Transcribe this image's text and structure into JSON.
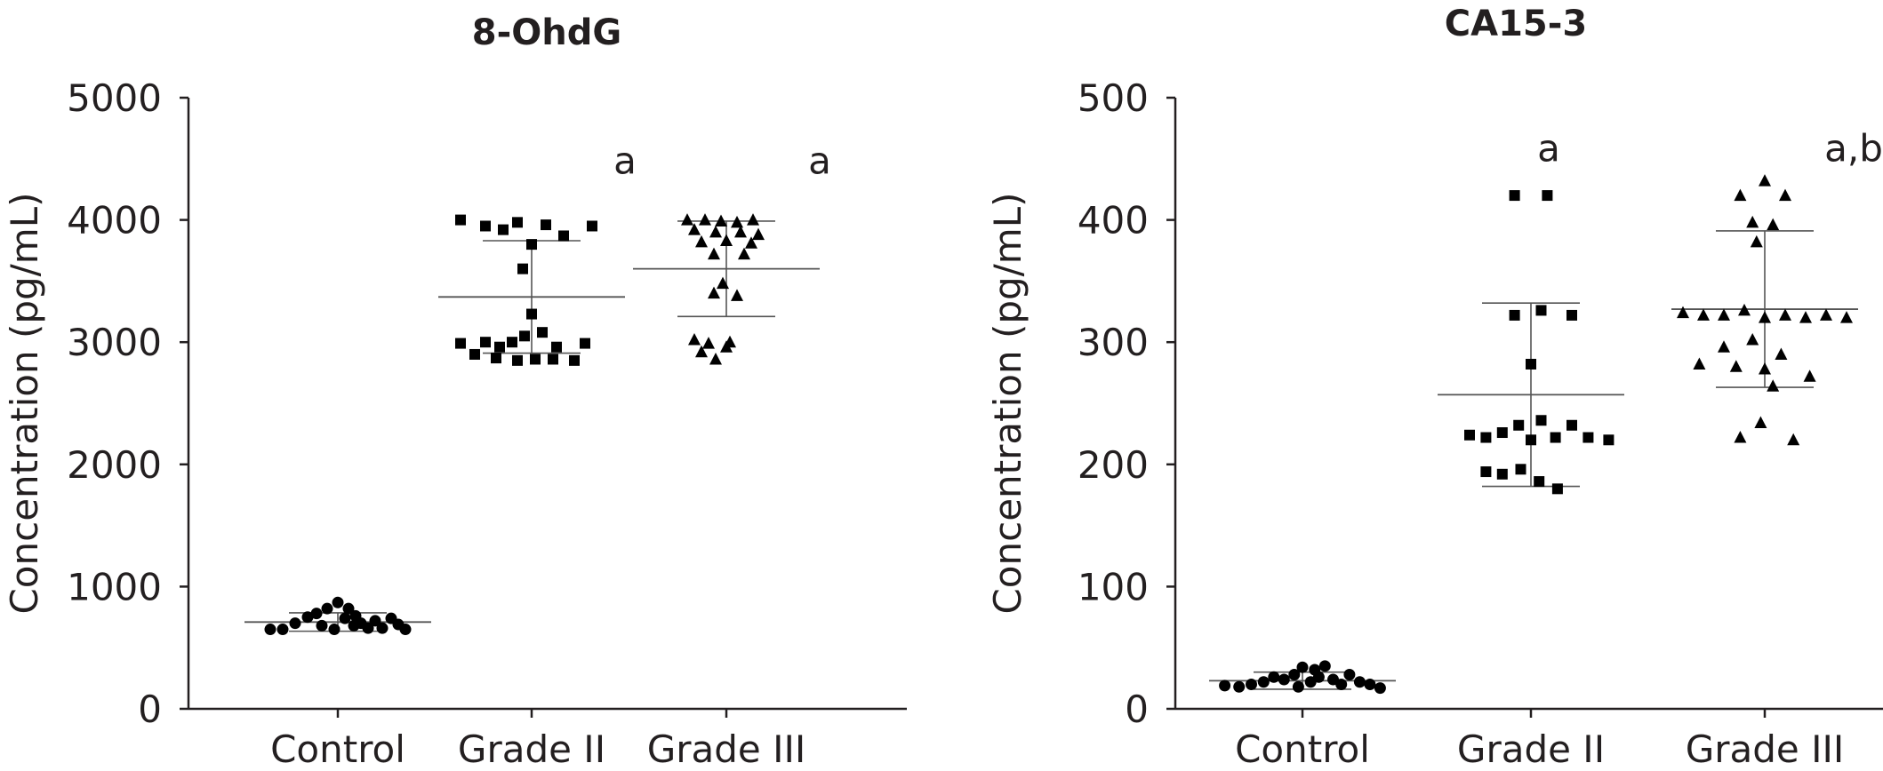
{
  "chart_data": [
    {
      "type": "scatter",
      "title": "8-OhdG",
      "xlabel": "",
      "ylabel": "Concentration (pg/mL)",
      "ylim": [
        0,
        5000
      ],
      "yticks": [
        0,
        1000,
        2000,
        3000,
        4000,
        5000
      ],
      "categories": [
        "Control",
        "Grade II",
        "Grade III"
      ],
      "markers": [
        "circle",
        "square",
        "triangle"
      ],
      "series": [
        {
          "category": "Control",
          "mean": 710,
          "sd": 75,
          "points": [
            {
              "offset": -0.38,
              "value": 650
            },
            {
              "offset": -0.31,
              "value": 650
            },
            {
              "offset": -0.24,
              "value": 700
            },
            {
              "offset": -0.17,
              "value": 750
            },
            {
              "offset": -0.12,
              "value": 780
            },
            {
              "offset": -0.06,
              "value": 820
            },
            {
              "offset": 0.0,
              "value": 870
            },
            {
              "offset": 0.04,
              "value": 740
            },
            {
              "offset": 0.06,
              "value": 820
            },
            {
              "offset": 0.1,
              "value": 760
            },
            {
              "offset": 0.13,
              "value": 700
            },
            {
              "offset": 0.17,
              "value": 660
            },
            {
              "offset": 0.21,
              "value": 720
            },
            {
              "offset": 0.25,
              "value": 660
            },
            {
              "offset": 0.3,
              "value": 740
            },
            {
              "offset": 0.34,
              "value": 690
            },
            {
              "offset": 0.38,
              "value": 650
            },
            {
              "offset": -0.09,
              "value": 680
            },
            {
              "offset": -0.02,
              "value": 650
            },
            {
              "offset": 0.09,
              "value": 680
            }
          ]
        },
        {
          "category": "Grade II",
          "mean": 3370,
          "sd": 460,
          "points": [
            {
              "offset": -0.4,
              "value": 4000
            },
            {
              "offset": -0.26,
              "value": 3950
            },
            {
              "offset": -0.16,
              "value": 3920
            },
            {
              "offset": -0.08,
              "value": 3980
            },
            {
              "offset": 0.08,
              "value": 3960
            },
            {
              "offset": 0.18,
              "value": 3870
            },
            {
              "offset": 0.34,
              "value": 3950
            },
            {
              "offset": 0.0,
              "value": 3800
            },
            {
              "offset": -0.05,
              "value": 3600
            },
            {
              "offset": 0.0,
              "value": 3230
            },
            {
              "offset": -0.11,
              "value": 3000
            },
            {
              "offset": -0.04,
              "value": 3050
            },
            {
              "offset": 0.06,
              "value": 3080
            },
            {
              "offset": -0.26,
              "value": 3000
            },
            {
              "offset": -0.18,
              "value": 2960
            },
            {
              "offset": 0.14,
              "value": 2960
            },
            {
              "offset": 0.3,
              "value": 2990
            },
            {
              "offset": -0.4,
              "value": 2990
            },
            {
              "offset": -0.32,
              "value": 2900
            },
            {
              "offset": -0.2,
              "value": 2870
            },
            {
              "offset": -0.08,
              "value": 2850
            },
            {
              "offset": 0.02,
              "value": 2860
            },
            {
              "offset": 0.12,
              "value": 2860
            },
            {
              "offset": 0.24,
              "value": 2850
            }
          ]
        },
        {
          "category": "Grade III",
          "mean": 3600,
          "sd": 390,
          "points": [
            {
              "offset": -0.22,
              "value": 4000
            },
            {
              "offset": -0.12,
              "value": 4000
            },
            {
              "offset": -0.03,
              "value": 3990
            },
            {
              "offset": 0.06,
              "value": 3980
            },
            {
              "offset": 0.15,
              "value": 4000
            },
            {
              "offset": -0.18,
              "value": 3920
            },
            {
              "offset": -0.06,
              "value": 3900
            },
            {
              "offset": 0.08,
              "value": 3900
            },
            {
              "offset": 0.18,
              "value": 3880
            },
            {
              "offset": -0.14,
              "value": 3820
            },
            {
              "offset": 0.0,
              "value": 3830
            },
            {
              "offset": 0.14,
              "value": 3810
            },
            {
              "offset": -0.07,
              "value": 3720
            },
            {
              "offset": 0.1,
              "value": 3720
            },
            {
              "offset": -0.02,
              "value": 3480
            },
            {
              "offset": -0.07,
              "value": 3400
            },
            {
              "offset": 0.06,
              "value": 3380
            },
            {
              "offset": -0.18,
              "value": 3020
            },
            {
              "offset": -0.1,
              "value": 2990
            },
            {
              "offset": 0.02,
              "value": 3000
            },
            {
              "offset": -0.14,
              "value": 2920
            },
            {
              "offset": -0.06,
              "value": 2860
            },
            {
              "offset": 0.0,
              "value": 2960
            }
          ]
        }
      ],
      "annotations": [
        {
          "category": "Grade II",
          "text": "a",
          "value": 4380
        },
        {
          "category": "Grade III",
          "text": "a",
          "value": 4380
        }
      ]
    },
    {
      "type": "scatter",
      "title": "CA15-3",
      "xlabel": "",
      "ylabel": "Concentration (pg/mL)",
      "ylim": [
        0,
        500
      ],
      "yticks": [
        0,
        100,
        200,
        300,
        400,
        500
      ],
      "categories": [
        "Control",
        "Grade II",
        "Grade III"
      ],
      "markers": [
        "circle",
        "square",
        "triangle"
      ],
      "series": [
        {
          "category": "Control",
          "mean": 23,
          "sd": 7,
          "points": [
            {
              "offset": -0.38,
              "value": 19
            },
            {
              "offset": -0.31,
              "value": 18
            },
            {
              "offset": -0.25,
              "value": 20
            },
            {
              "offset": -0.19,
              "value": 22
            },
            {
              "offset": -0.14,
              "value": 26
            },
            {
              "offset": -0.09,
              "value": 24
            },
            {
              "offset": -0.04,
              "value": 28
            },
            {
              "offset": 0.0,
              "value": 34
            },
            {
              "offset": 0.04,
              "value": 22
            },
            {
              "offset": 0.08,
              "value": 26
            },
            {
              "offset": 0.11,
              "value": 35
            },
            {
              "offset": 0.15,
              "value": 24
            },
            {
              "offset": 0.19,
              "value": 20
            },
            {
              "offset": 0.23,
              "value": 28
            },
            {
              "offset": 0.28,
              "value": 22
            },
            {
              "offset": 0.33,
              "value": 20
            },
            {
              "offset": 0.38,
              "value": 17
            },
            {
              "offset": -0.02,
              "value": 18
            },
            {
              "offset": 0.06,
              "value": 32
            }
          ]
        },
        {
          "category": "Grade II",
          "mean": 257,
          "sd": 75,
          "points": [
            {
              "offset": -0.08,
              "value": 420
            },
            {
              "offset": 0.08,
              "value": 420
            },
            {
              "offset": 0.0,
              "value": 282
            },
            {
              "offset": -0.08,
              "value": 322
            },
            {
              "offset": 0.05,
              "value": 326
            },
            {
              "offset": 0.2,
              "value": 322
            },
            {
              "offset": -0.3,
              "value": 224
            },
            {
              "offset": -0.22,
              "value": 222
            },
            {
              "offset": -0.14,
              "value": 226
            },
            {
              "offset": -0.06,
              "value": 232
            },
            {
              "offset": 0.0,
              "value": 220
            },
            {
              "offset": 0.05,
              "value": 236
            },
            {
              "offset": 0.12,
              "value": 222
            },
            {
              "offset": 0.2,
              "value": 232
            },
            {
              "offset": 0.28,
              "value": 222
            },
            {
              "offset": 0.38,
              "value": 220
            },
            {
              "offset": -0.22,
              "value": 194
            },
            {
              "offset": -0.14,
              "value": 192
            },
            {
              "offset": -0.05,
              "value": 196
            },
            {
              "offset": 0.04,
              "value": 186
            },
            {
              "offset": 0.13,
              "value": 180
            }
          ]
        },
        {
          "category": "Grade III",
          "mean": 327,
          "sd": 64,
          "points": [
            {
              "offset": 0.0,
              "value": 432
            },
            {
              "offset": -0.12,
              "value": 420
            },
            {
              "offset": 0.1,
              "value": 420
            },
            {
              "offset": -0.06,
              "value": 398
            },
            {
              "offset": 0.04,
              "value": 396
            },
            {
              "offset": -0.04,
              "value": 382
            },
            {
              "offset": -0.4,
              "value": 324
            },
            {
              "offset": -0.3,
              "value": 322
            },
            {
              "offset": -0.2,
              "value": 322
            },
            {
              "offset": -0.1,
              "value": 326
            },
            {
              "offset": 0.0,
              "value": 320
            },
            {
              "offset": 0.1,
              "value": 322
            },
            {
              "offset": 0.2,
              "value": 320
            },
            {
              "offset": 0.3,
              "value": 322
            },
            {
              "offset": 0.4,
              "value": 320
            },
            {
              "offset": -0.2,
              "value": 296
            },
            {
              "offset": -0.06,
              "value": 302
            },
            {
              "offset": 0.08,
              "value": 290
            },
            {
              "offset": -0.32,
              "value": 282
            },
            {
              "offset": -0.14,
              "value": 280
            },
            {
              "offset": 0.0,
              "value": 278
            },
            {
              "offset": 0.22,
              "value": 272
            },
            {
              "offset": 0.04,
              "value": 264
            },
            {
              "offset": -0.02,
              "value": 234
            },
            {
              "offset": -0.12,
              "value": 222
            },
            {
              "offset": 0.14,
              "value": 220
            }
          ]
        }
      ],
      "annotations": [
        {
          "category": "Grade II",
          "text": "a",
          "value": 448
        },
        {
          "category": "Grade III",
          "text": "a,b",
          "value": 448
        }
      ]
    }
  ]
}
